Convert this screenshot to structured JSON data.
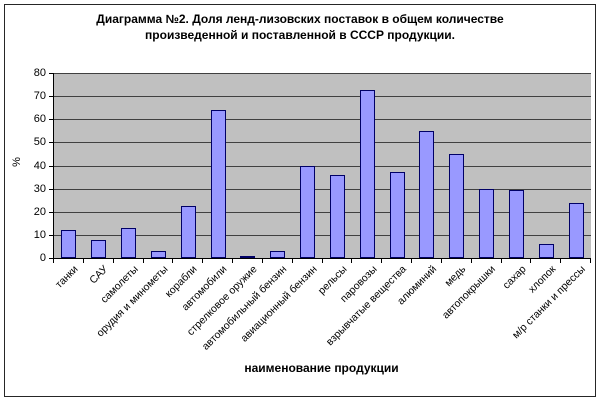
{
  "chart_data": {
    "type": "bar",
    "title_lines": [
      "Диаграмма №2. Доля ленд-лизовских поставок в общем количестве",
      "произведенной и поставленной в СССР продукции."
    ],
    "xlabel": "наименование продукции",
    "ylabel": "%",
    "ylim": [
      0,
      80
    ],
    "yticks": [
      0,
      10,
      20,
      30,
      40,
      50,
      60,
      70,
      80
    ],
    "grid": true,
    "legend": false,
    "categories": [
      "танки",
      "САУ",
      "самолеты",
      "орудия и минометы",
      "корабли",
      "автомобили",
      "стрелковое оружие",
      "автомобильный бензин",
      "авиационный бензин",
      "рельсы",
      "паровозы",
      "взрывчатые вещества",
      "алюминий",
      "медь",
      "автопокрышки",
      "сахар",
      "хлопок",
      "м/р станки и прессы"
    ],
    "values": [
      12,
      8,
      13,
      3,
      22.5,
      64,
      0.8,
      3,
      40,
      36,
      72.5,
      37,
      55,
      45,
      30,
      29.5,
      6,
      24
    ],
    "colors": {
      "bar_fill": "#9999ff",
      "bar_border": "#000066",
      "plot_bg": "#c0c0c0",
      "gridline": "#404040",
      "axis": "#000000",
      "text": "#000000",
      "frame_border": "#262626",
      "background": "#ffffff"
    }
  }
}
